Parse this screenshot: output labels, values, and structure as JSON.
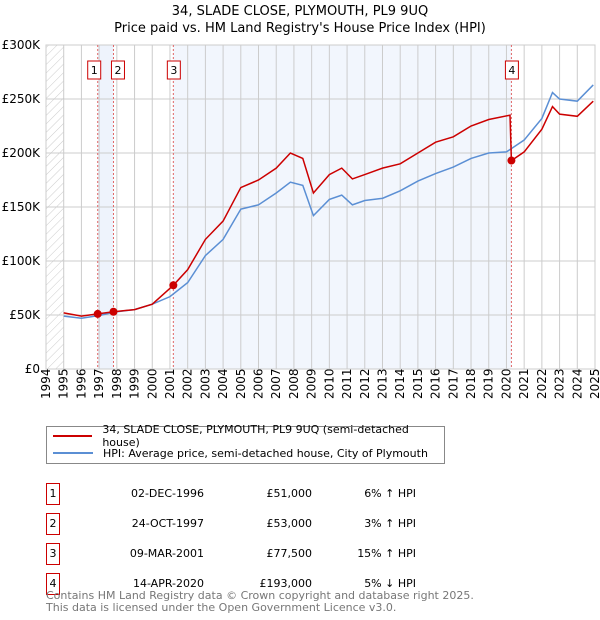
{
  "chart_data": {
    "type": "line",
    "title": "34, SLADE CLOSE, PLYMOUTH, PL9 9UQ",
    "subtitle": "Price paid vs. HM Land Registry's House Price Index (HPI)",
    "xlim": [
      1994,
      2025
    ],
    "ylim": [
      0,
      300000
    ],
    "yticks": [
      {
        "v": 0,
        "label": "£0"
      },
      {
        "v": 50000,
        "label": "£50K"
      },
      {
        "v": 100000,
        "label": "£100K"
      },
      {
        "v": 150000,
        "label": "£150K"
      },
      {
        "v": 200000,
        "label": "£200K"
      },
      {
        "v": 250000,
        "label": "£250K"
      },
      {
        "v": 300000,
        "label": "£300K"
      }
    ],
    "xticks": [
      "1994",
      "1995",
      "1996",
      "1997",
      "1998",
      "1999",
      "2000",
      "2001",
      "2002",
      "2003",
      "2004",
      "2005",
      "2006",
      "2007",
      "2008",
      "2009",
      "2010",
      "2011",
      "2012",
      "2013",
      "2014",
      "2015",
      "2016",
      "2017",
      "2018",
      "2019",
      "2020",
      "2021",
      "2022",
      "2023",
      "2024",
      "2025"
    ],
    "grid": true,
    "series": [
      {
        "name": "34, SLADE CLOSE, PLYMOUTH, PL9 9UQ (semi-detached house)",
        "color": "#cc0000",
        "x": [
          1995,
          1996,
          1996.92,
          1997.81,
          1999,
          2000,
          2001.19,
          2002,
          2003,
          2004,
          2005,
          2006,
          2007,
          2007.8,
          2008.5,
          2009.1,
          2010,
          2010.7,
          2011.3,
          2012,
          2013,
          2014,
          2015,
          2016,
          2017,
          2018,
          2019,
          2020.2,
          2020.28,
          2021,
          2022,
          2022.6,
          2023,
          2024,
          2024.9
        ],
        "y": [
          52000,
          49000,
          51000,
          53000,
          55000,
          60000,
          77500,
          92000,
          120000,
          137000,
          168000,
          175000,
          186000,
          200000,
          195000,
          163000,
          180000,
          186000,
          176000,
          180000,
          186000,
          190000,
          200000,
          210000,
          215000,
          225000,
          231000,
          235000,
          193000,
          201000,
          222000,
          243000,
          236000,
          234000,
          248000
        ]
      },
      {
        "name": "HPI: Average price, semi-detached house, City of Plymouth",
        "color": "#5b8fd4",
        "x": [
          1995,
          1996,
          1997,
          1998,
          1999,
          2000,
          2001,
          2002,
          2003,
          2004,
          2005,
          2006,
          2007,
          2007.8,
          2008.5,
          2009.1,
          2010,
          2010.7,
          2011.3,
          2012,
          2013,
          2014,
          2015,
          2016,
          2017,
          2018,
          2019,
          2020,
          2021,
          2022,
          2022.6,
          2023,
          2024,
          2024.9
        ],
        "y": [
          49000,
          47000,
          49500,
          53000,
          55000,
          60000,
          67000,
          80000,
          105000,
          120000,
          148000,
          152000,
          163000,
          173000,
          170000,
          142000,
          157000,
          161000,
          152000,
          156000,
          158000,
          165000,
          174000,
          181000,
          187000,
          195000,
          200000,
          201000,
          212000,
          232000,
          256000,
          250000,
          248000,
          263000
        ]
      }
    ],
    "sales": [
      {
        "id": "1",
        "x": 1996.92,
        "y": 51000,
        "date": "02-DEC-1996",
        "price": "£51,000",
        "hpi": "6% ↑ HPI"
      },
      {
        "id": "2",
        "x": 1997.81,
        "y": 53000,
        "date": "24-OCT-1997",
        "price": "£53,000",
        "hpi": "3% ↑ HPI"
      },
      {
        "id": "3",
        "x": 2001.19,
        "y": 77500,
        "date": "09-MAR-2001",
        "price": "£77,500",
        "hpi": "15% ↑ HPI"
      },
      {
        "id": "4",
        "x": 2020.28,
        "y": 193000,
        "date": "14-APR-2020",
        "price": "£193,000",
        "hpi": "5% ↓ HPI"
      }
    ]
  },
  "legend": {
    "property": "34, SLADE CLOSE, PLYMOUTH, PL9 9UQ (semi-detached house)",
    "hpi": "HPI: Average price, semi-detached house, City of Plymouth"
  },
  "footer": {
    "line1": "Contains HM Land Registry data © Crown copyright and database right 2025.",
    "line2": "This data is licensed under the Open Government Licence v3.0."
  }
}
